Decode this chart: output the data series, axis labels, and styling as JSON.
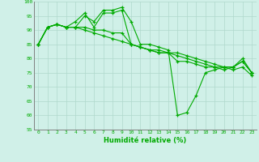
{
  "x": [
    0,
    1,
    2,
    3,
    4,
    5,
    6,
    7,
    8,
    9,
    10,
    11,
    12,
    13,
    14,
    15,
    16,
    17,
    18,
    19,
    20,
    21,
    22,
    23
  ],
  "line1": [
    85,
    91,
    92,
    91,
    91,
    95,
    93,
    97,
    97,
    98,
    93,
    85,
    85,
    84,
    83,
    60,
    61,
    67,
    75,
    76,
    77,
    77,
    80,
    75
  ],
  "line2": [
    85,
    91,
    92,
    91,
    93,
    96,
    91,
    96,
    96,
    97,
    85,
    84,
    83,
    82,
    82,
    79,
    79,
    78,
    77,
    77,
    76,
    77,
    79,
    75
  ],
  "line3": [
    85,
    91,
    92,
    91,
    91,
    91,
    90,
    90,
    89,
    89,
    85,
    84,
    83,
    83,
    82,
    82,
    81,
    80,
    79,
    78,
    77,
    77,
    79,
    75
  ],
  "line4": [
    85,
    91,
    92,
    91,
    91,
    90,
    89,
    88,
    87,
    86,
    85,
    84,
    83,
    82,
    82,
    81,
    80,
    79,
    78,
    77,
    77,
    76,
    77,
    74
  ],
  "bg_color": "#d0f0e8",
  "grid_color_major": "#b0d8cc",
  "grid_color_minor": "#c0e8dc",
  "line_color": "#00aa00",
  "xlabel": "Humidité relative (%)",
  "ylim": [
    55,
    100
  ],
  "xlim": [
    -0.5,
    23.5
  ],
  "yticks": [
    55,
    60,
    65,
    70,
    75,
    80,
    85,
    90,
    95,
    100
  ],
  "xticks": [
    0,
    1,
    2,
    3,
    4,
    5,
    6,
    7,
    8,
    9,
    10,
    11,
    12,
    13,
    14,
    15,
    16,
    17,
    18,
    19,
    20,
    21,
    22,
    23
  ]
}
